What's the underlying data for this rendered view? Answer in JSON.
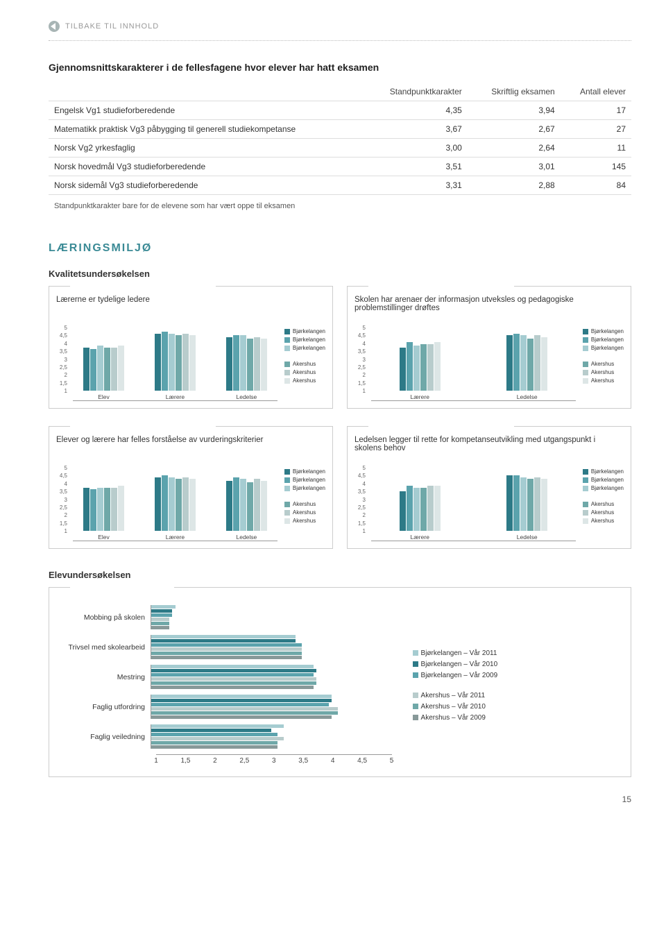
{
  "nav": {
    "back": "TILBAKE TIL INNHOLD"
  },
  "table": {
    "title": "Gjennomsnittskarakterer i de fellesfagene hvor elever har hatt eksamen",
    "headers": [
      "",
      "Standpunktkarakter",
      "Skriftlig eksamen",
      "Antall elever"
    ],
    "rows": [
      [
        "Engelsk Vg1 studieforberedende",
        "4,35",
        "3,94",
        "17"
      ],
      [
        "Matematikk praktisk Vg3 påbygging til generell studiekompetanse",
        "3,67",
        "2,67",
        "27"
      ],
      [
        "Norsk Vg2 yrkesfaglig",
        "3,00",
        "2,64",
        "11"
      ],
      [
        "Norsk hovedmål Vg3 studieforberedende",
        "3,51",
        "3,01",
        "145"
      ],
      [
        "Norsk sidemål Vg3 studieforberedende",
        "3,31",
        "2,88",
        "84"
      ]
    ],
    "footnote": "Standpunktkarakter bare for de elevene som har vært oppe til eksamen"
  },
  "section1": "LÆRINGSMILJØ",
  "sub1": "Kvalitetsundersøkelsen",
  "sub2": "Elevundersøkelsen",
  "palette": {
    "b1": "#2d7a87",
    "b2": "#5ba3ad",
    "b3": "#a5ccd1",
    "a1": "#6fa8a8",
    "a2": "#b8cccc",
    "a3": "#dde6e6"
  },
  "yTicks": [
    "1",
    "1,5",
    "2",
    "2,5",
    "3",
    "3,5",
    "4",
    "4,5",
    "5"
  ],
  "legendItems": [
    {
      "c": "#2d7a87",
      "t": "Bjørkelangen"
    },
    {
      "c": "#5ba3ad",
      "t": "Bjørkelangen"
    },
    {
      "c": "#a5ccd1",
      "t": "Bjørkelangen"
    },
    {
      "c": "#6fa8a8",
      "t": "Akershus"
    },
    {
      "c": "#b8cccc",
      "t": "Akershus"
    },
    {
      "c": "#dde6e6",
      "t": "Akershus"
    }
  ],
  "charts": [
    {
      "title": "Lærerne er tydelige ledere",
      "groups": [
        "Elev",
        "Lærere",
        "Ledelse"
      ],
      "data": [
        [
          3.5,
          3.4,
          3.6,
          3.5,
          3.5,
          3.6
        ],
        [
          4.3,
          4.4,
          4.3,
          4.2,
          4.3,
          4.2
        ],
        [
          4.1,
          4.2,
          4.2,
          4.0,
          4.1,
          4.0
        ]
      ]
    },
    {
      "title": "Skolen har arenaer der informasjon utveksles og pedagogiske problemstillinger drøftes",
      "groups": [
        "Lærere",
        "Ledelse"
      ],
      "data": [
        [
          3.5,
          3.8,
          3.6,
          3.7,
          3.7,
          3.8
        ],
        [
          4.2,
          4.3,
          4.2,
          4.0,
          4.2,
          4.1
        ]
      ]
    },
    {
      "title": "Elever og lærere har felles forståelse av vurderingskriterier",
      "groups": [
        "Elev",
        "Lærere",
        "Ledelse"
      ],
      "data": [
        [
          3.5,
          3.4,
          3.5,
          3.5,
          3.5,
          3.6
        ],
        [
          4.1,
          4.2,
          4.1,
          4.0,
          4.1,
          4.0
        ],
        [
          3.9,
          4.1,
          4.0,
          3.8,
          4.0,
          3.9
        ]
      ]
    },
    {
      "title": "Ledelsen legger til rette for kompetanseutvikling med utgangspunkt i skolens behov",
      "groups": [
        "Lærere",
        "Ledelse"
      ],
      "data": [
        [
          3.3,
          3.6,
          3.5,
          3.5,
          3.6,
          3.6
        ],
        [
          4.2,
          4.2,
          4.1,
          4.0,
          4.1,
          4.0
        ]
      ]
    }
  ],
  "hchart": {
    "categories": [
      "Mobbing på skolen",
      "Trivsel med skolearbeid",
      "Mestring",
      "Faglig utfordring",
      "Faglig veiledning"
    ],
    "xmin": 1,
    "xmax": 5,
    "xstep": 0.5,
    "xticks": [
      "1",
      "1,5",
      "2",
      "2,5",
      "3",
      "3,5",
      "4",
      "4,5",
      "5"
    ],
    "series": [
      {
        "c": "#a5ccd1",
        "t": "Bjørkelangen – Vår 2011"
      },
      {
        "c": "#2d7a87",
        "t": "Bjørkelangen – Vår 2010"
      },
      {
        "c": "#5ba3ad",
        "t": "Bjørkelangen – Vår 2009"
      },
      {
        "c": "#b8cccc",
        "t": "Akershus – Vår 2011"
      },
      {
        "c": "#6fa8a8",
        "t": "Akershus – Vår 2010"
      },
      {
        "c": "#889999",
        "t": "Akershus – Vår 2009"
      }
    ],
    "data": [
      [
        1.4,
        1.35,
        1.35,
        1.3,
        1.3,
        1.3
      ],
      [
        3.4,
        3.4,
        3.5,
        3.5,
        3.5,
        3.5
      ],
      [
        3.7,
        3.75,
        3.7,
        3.75,
        3.75,
        3.7
      ],
      [
        4.0,
        4.0,
        3.95,
        4.1,
        4.1,
        4.0
      ],
      [
        3.2,
        3.0,
        3.1,
        3.2,
        3.1,
        3.1
      ]
    ]
  },
  "pagenum": "15"
}
